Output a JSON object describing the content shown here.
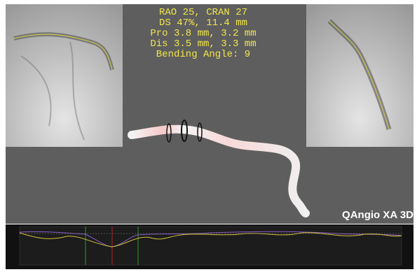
{
  "overlay": {
    "lines": [
      "RAO 25, CRAN 27",
      "DS 47%, 11.4 mm",
      "Pro 3.8 mm, 3.2 mm",
      "Dis 3.5 mm, 3.3 mm",
      "Bending Angle: 9"
    ]
  },
  "brand": "QAngio XA 3D"
}
